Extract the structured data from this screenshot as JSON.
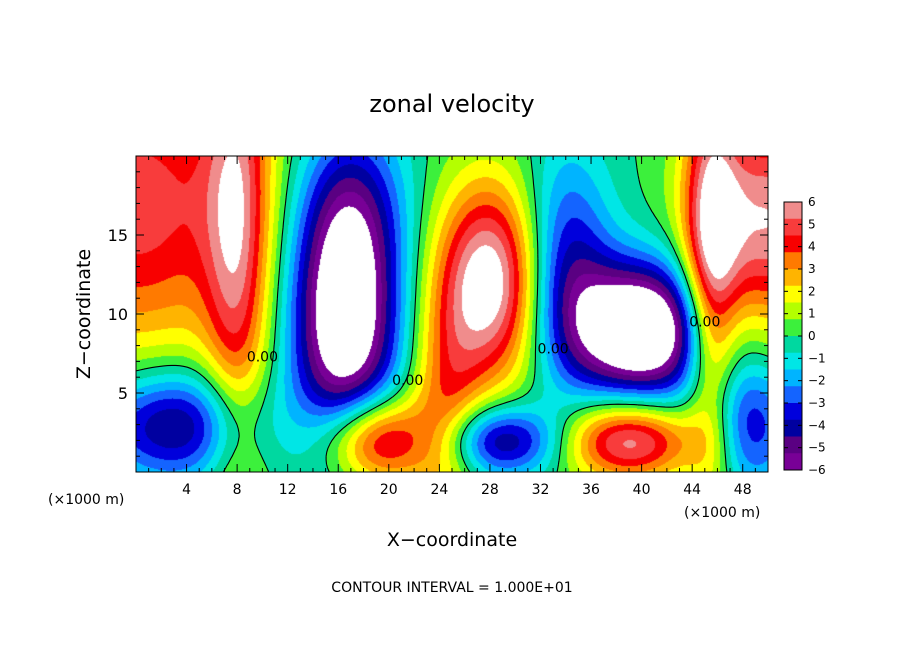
{
  "chart_data": {
    "type": "heatmap",
    "title": "zonal velocity",
    "xlabel": "X−coordinate",
    "ylabel": "Z−coordinate",
    "x_unit_left": "(×1000 m)",
    "x_unit_right": "(×1000 m)",
    "footer": "CONTOUR INTERVAL = 1.000E+01",
    "xlim": [
      0,
      50
    ],
    "ylim": [
      0,
      20
    ],
    "x_ticks": [
      4,
      8,
      12,
      16,
      20,
      24,
      28,
      32,
      36,
      40,
      44,
      48
    ],
    "y_ticks": [
      5,
      10,
      15
    ],
    "colorbar": {
      "vmin": -6,
      "vmax": 6,
      "tick_labels": [
        "6",
        "5",
        "4",
        "3",
        "2",
        "1",
        "0",
        "−1",
        "−2",
        "−3",
        "−4",
        "−5",
        "−6"
      ],
      "colors": [
        "#f08c8c",
        "#f83c3c",
        "#f80000",
        "#ff7a00",
        "#ffb400",
        "#ffff00",
        "#b4ff00",
        "#3cf03c",
        "#00d8a0",
        "#00e6e6",
        "#00b4ff",
        "#1464ff",
        "#0000dc",
        "#0000a0",
        "#5a0082",
        "#780096"
      ]
    },
    "contour_labels": [
      {
        "text": "0.00",
        "x": 10,
        "y": 7.0
      },
      {
        "text": "0.00",
        "x": 21.5,
        "y": 5.5
      },
      {
        "text": "0.00",
        "x": 33,
        "y": 7.5
      },
      {
        "text": "0.00",
        "x": 45,
        "y": 9.2
      }
    ],
    "field_features": [
      {
        "cx": 0,
        "cy": 17,
        "sx": 7,
        "sy": 7,
        "amp": 5
      },
      {
        "cx": 3,
        "cy": 3,
        "sx": 4.5,
        "sy": 2.5,
        "amp": -5
      },
      {
        "cx": 8,
        "cy": 15,
        "sx": 1.8,
        "sy": 12,
        "amp": 4
      },
      {
        "cx": 16.5,
        "cy": 9.5,
        "sx": 3,
        "sy": 5.5,
        "amp": -8
      },
      {
        "cx": 17,
        "cy": 17,
        "sx": 3,
        "sy": 4,
        "amp": -3
      },
      {
        "cx": 19,
        "cy": 2,
        "sx": 3,
        "sy": 2,
        "amp": 6
      },
      {
        "cx": 24.5,
        "cy": 4,
        "sx": 2,
        "sy": 5,
        "amp": 3
      },
      {
        "cx": 28,
        "cy": 12,
        "sx": 3,
        "sy": 4.5,
        "amp": 7
      },
      {
        "cx": 29,
        "cy": 2,
        "sx": 3.5,
        "sy": 1.6,
        "amp": -5
      },
      {
        "cx": 34,
        "cy": 13,
        "sx": 2.5,
        "sy": 5,
        "amp": -4
      },
      {
        "cx": 40,
        "cy": 9,
        "sx": 3.8,
        "sy": 3,
        "amp": -9
      },
      {
        "cx": 39,
        "cy": 2,
        "sx": 4,
        "sy": 1.8,
        "amp": 6
      },
      {
        "cx": 45.5,
        "cy": 12,
        "sx": 1.5,
        "sy": 10,
        "amp": 5
      },
      {
        "cx": 50,
        "cy": 16,
        "sx": 4,
        "sy": 5,
        "amp": 6
      },
      {
        "cx": 48,
        "cy": 3,
        "sx": 3,
        "sy": 3,
        "amp": -4
      }
    ],
    "grid": false,
    "colorbar_placement": "right"
  }
}
